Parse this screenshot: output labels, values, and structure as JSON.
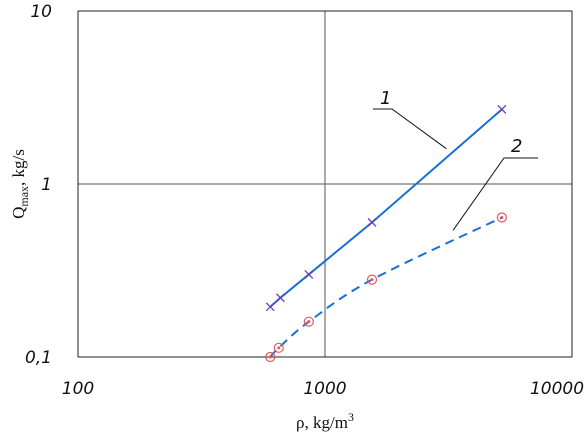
{
  "chart_data": {
    "type": "line",
    "xscale": "log",
    "yscale": "log",
    "xlim": [
      100,
      10000
    ],
    "ylim": [
      0.1,
      10
    ],
    "grid": true,
    "xlabel": {
      "base": "ρ, kg/m",
      "sup": "3"
    },
    "ylabel": {
      "base": "Q",
      "sub": "max",
      "rest": ", kg/s"
    },
    "x_tick_labels": [
      "100",
      "1000",
      "10000"
    ],
    "y_tick_labels": [
      "0,1",
      "1",
      "10"
    ],
    "colors": {
      "series": "#1a6fd6",
      "marker_x": "#6a3fb5",
      "marker_o": "#e05a5a",
      "grid": "#555555"
    },
    "series": [
      {
        "label": "1",
        "line_style": "solid",
        "marker": "x",
        "x": [
          600,
          660,
          860,
          1550,
          5200
        ],
        "y": [
          0.195,
          0.22,
          0.3,
          0.6,
          2.7
        ]
      },
      {
        "label": "2",
        "line_style": "dashed",
        "marker": "o",
        "x": [
          600,
          650,
          860,
          1550,
          5200
        ],
        "y": [
          0.1,
          0.113,
          0.16,
          0.28,
          0.64
        ]
      }
    ]
  }
}
